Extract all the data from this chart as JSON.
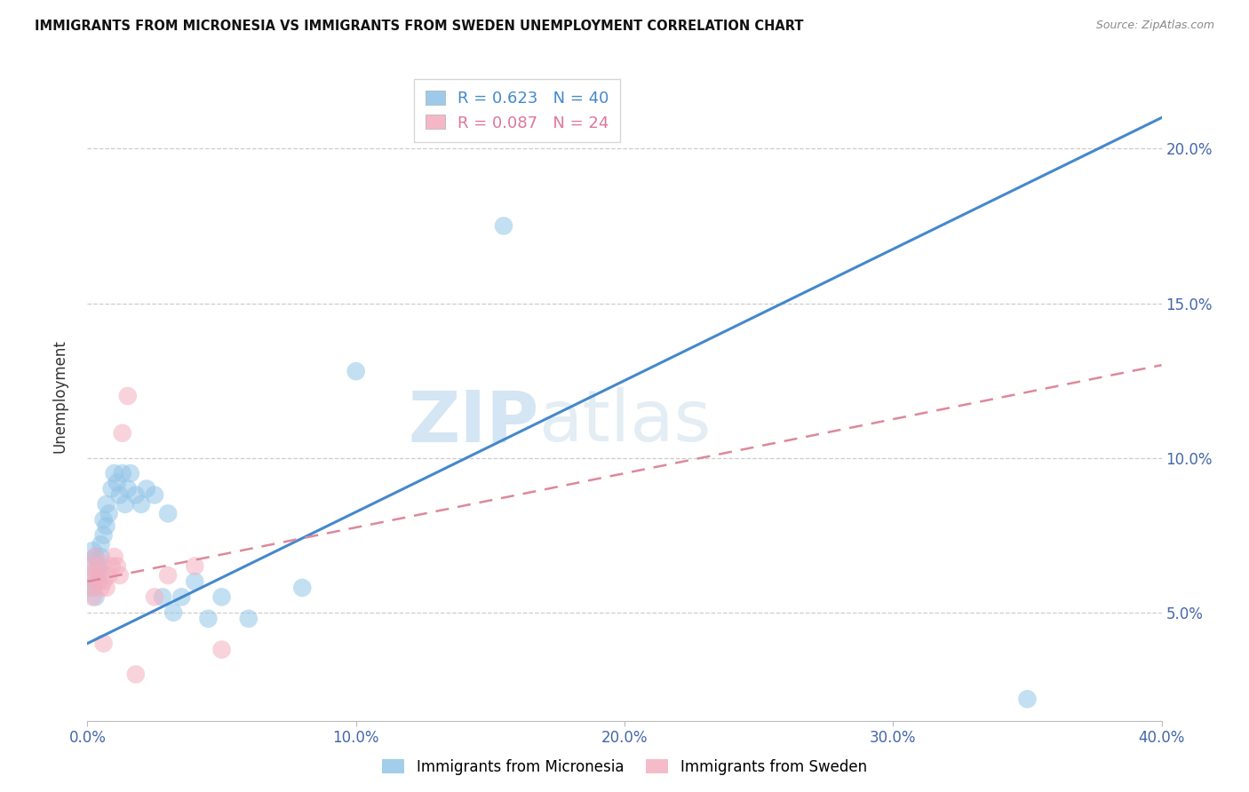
{
  "title": "IMMIGRANTS FROM MICRONESIA VS IMMIGRANTS FROM SWEDEN UNEMPLOYMENT CORRELATION CHART",
  "source": "Source: ZipAtlas.com",
  "ylabel": "Unemployment",
  "y_tick_labels": [
    "5.0%",
    "10.0%",
    "15.0%",
    "20.0%"
  ],
  "y_tick_values": [
    0.05,
    0.1,
    0.15,
    0.2
  ],
  "x_tick_values": [
    0.0,
    0.1,
    0.2,
    0.3,
    0.4
  ],
  "x_tick_labels": [
    "0.0%",
    "10.0%",
    "20.0%",
    "30.0%",
    "40.0%"
  ],
  "xlim": [
    0.0,
    0.4
  ],
  "ylim": [
    0.015,
    0.225
  ],
  "legend_r1": "R = 0.623",
  "legend_n1": "N = 40",
  "legend_r2": "R = 0.087",
  "legend_n2": "N = 24",
  "color_micronesia": "#92c5e8",
  "color_sweden": "#f4afc0",
  "trendline_blue_color": "#4488cc",
  "trendline_pink_color": "#dd8899",
  "watermark_zip": "ZIP",
  "watermark_atlas": "atlas",
  "blue_line_x0": 0.0,
  "blue_line_y0": 0.04,
  "blue_line_x1": 0.4,
  "blue_line_y1": 0.21,
  "pink_line_x0": 0.0,
  "pink_line_y0": 0.06,
  "pink_line_x1": 0.4,
  "pink_line_y1": 0.13,
  "micronesia_x": [
    0.001,
    0.001,
    0.002,
    0.002,
    0.003,
    0.003,
    0.004,
    0.004,
    0.005,
    0.005,
    0.005,
    0.006,
    0.006,
    0.007,
    0.007,
    0.008,
    0.009,
    0.01,
    0.011,
    0.012,
    0.013,
    0.014,
    0.015,
    0.016,
    0.018,
    0.02,
    0.022,
    0.025,
    0.028,
    0.03,
    0.032,
    0.035,
    0.04,
    0.045,
    0.05,
    0.06,
    0.08,
    0.1,
    0.155,
    0.35
  ],
  "micronesia_y": [
    0.06,
    0.065,
    0.058,
    0.07,
    0.055,
    0.068,
    0.065,
    0.06,
    0.072,
    0.068,
    0.063,
    0.075,
    0.08,
    0.078,
    0.085,
    0.082,
    0.09,
    0.095,
    0.092,
    0.088,
    0.095,
    0.085,
    0.09,
    0.095,
    0.088,
    0.085,
    0.09,
    0.088,
    0.055,
    0.082,
    0.05,
    0.055,
    0.06,
    0.048,
    0.055,
    0.048,
    0.058,
    0.128,
    0.175,
    0.022
  ],
  "sweden_x": [
    0.001,
    0.001,
    0.002,
    0.002,
    0.003,
    0.003,
    0.004,
    0.005,
    0.005,
    0.006,
    0.006,
    0.007,
    0.008,
    0.009,
    0.01,
    0.011,
    0.012,
    0.013,
    0.015,
    0.018,
    0.025,
    0.03,
    0.04,
    0.05
  ],
  "sweden_y": [
    0.062,
    0.058,
    0.055,
    0.065,
    0.06,
    0.068,
    0.063,
    0.058,
    0.065,
    0.06,
    0.04,
    0.058,
    0.062,
    0.065,
    0.068,
    0.065,
    0.062,
    0.108,
    0.12,
    0.03,
    0.055,
    0.062,
    0.065,
    0.038
  ]
}
